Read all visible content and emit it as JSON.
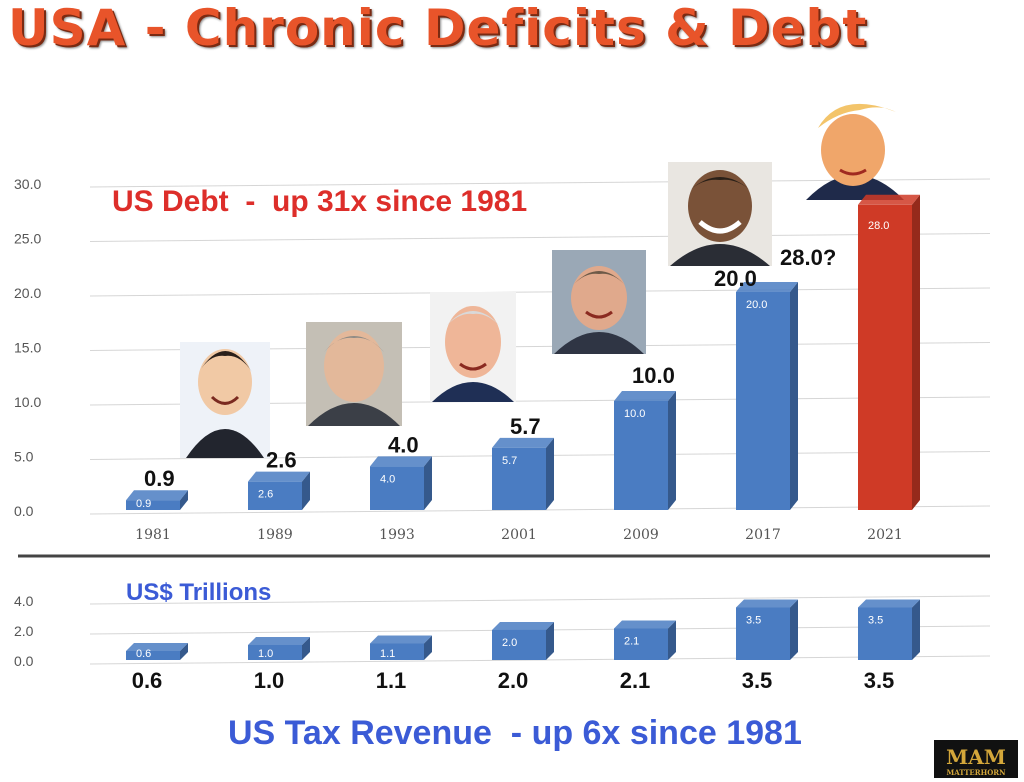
{
  "title": "USA - Chronic Deficits & Debt",
  "annotations": {
    "debt": "US Debt  -  up 31x since 1981",
    "units": "US$ Trillions",
    "tax": "US Tax Revenue  - up 6x since 1981"
  },
  "logo": {
    "text": "MAM",
    "subtext": "MATTERHORN"
  },
  "colors": {
    "bar": "#4a7cc2",
    "highlight": "#cf3a26",
    "title": "#e8542a"
  },
  "chart_data": [
    {
      "type": "bar",
      "title": "US Debt  -  up 31x since 1981",
      "categories": [
        "1981",
        "1989",
        "1993",
        "2001",
        "2009",
        "2017",
        "2021"
      ],
      "values": [
        0.9,
        2.6,
        4.0,
        5.7,
        10.0,
        20.0,
        28.0
      ],
      "inner_labels": [
        "0.9",
        "2.6",
        "4.0",
        "5.7",
        "10.0",
        "20.0",
        "28.0"
      ],
      "outer_labels": [
        "0.9",
        "2.6",
        "4.0",
        "5.7",
        "10.0",
        "20.0",
        "28.0?"
      ],
      "highlight": [
        "2021"
      ],
      "y_ticks": [
        "0.0",
        "5.0",
        "10.0",
        "15.0",
        "20.0",
        "25.0",
        "30.0"
      ],
      "ylim": [
        0,
        30
      ],
      "grid": true
    },
    {
      "type": "bar",
      "title": "US Tax Revenue  - up 6x since 1981",
      "ylabel": "US$ Trillions",
      "categories": [
        "1981",
        "1989",
        "1993",
        "2001",
        "2009",
        "2017",
        "2021"
      ],
      "values": [
        0.6,
        1.0,
        1.1,
        2.0,
        2.1,
        3.5,
        3.5
      ],
      "inner_labels": [
        "0.6",
        "1.0",
        "1.1",
        "2.0",
        "2.1",
        "3.5",
        "3.5"
      ],
      "outer_labels": [
        "0.6",
        "1.0",
        "1.1",
        "2.0",
        "2.1",
        "3.5",
        "3.5"
      ],
      "y_ticks": [
        "0.0",
        "2.0",
        "4.0"
      ],
      "ylim": [
        0,
        4
      ],
      "grid": true
    }
  ]
}
